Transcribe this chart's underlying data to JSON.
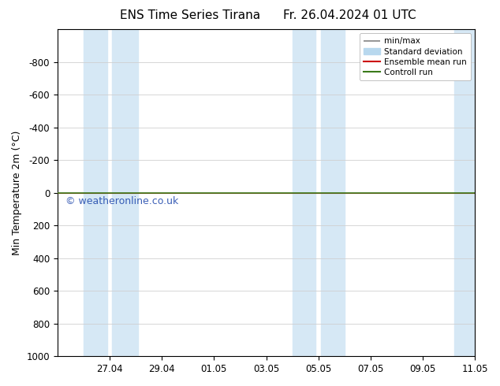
{
  "title": "ENS Time Series Tirana",
  "title_right": "Fr. 26.04.2024 01 UTC",
  "ylabel": "Min Temperature 2m (°C)",
  "watermark": "© weatheronline.co.uk",
  "ylim_bottom": 1000,
  "ylim_top": -1000,
  "yticks": [
    -800,
    -600,
    -400,
    -200,
    0,
    200,
    400,
    600,
    800,
    1000
  ],
  "xtick_labels": [
    "27.04",
    "29.04",
    "01.05",
    "03.05",
    "05.05",
    "07.05",
    "09.05",
    "11.05"
  ],
  "bg_color": "#ffffff",
  "plot_bg_color": "#ffffff",
  "shaded_band_color": "#d6e8f5",
  "grid_color": "#d0d0d0",
  "control_run_color": "#3a7a1a",
  "ensemble_mean_color": "#cc0000",
  "minmax_color": "#999999",
  "stddev_color": "#b8d8ee",
  "legend_labels": [
    "min/max",
    "Standard deviation",
    "Ensemble mean run",
    "Controll run"
  ],
  "figsize": [
    6.34,
    4.9
  ],
  "dpi": 100,
  "x_min": 0,
  "x_max": 16,
  "tick_positions": [
    2,
    4,
    6,
    8,
    10,
    12,
    14,
    16
  ],
  "shaded_regions": [
    [
      0.5,
      1.5
    ],
    [
      2.5,
      3.5
    ],
    [
      9.5,
      10.5
    ],
    [
      11.5,
      12.0
    ],
    [
      15.5,
      16.0
    ]
  ]
}
